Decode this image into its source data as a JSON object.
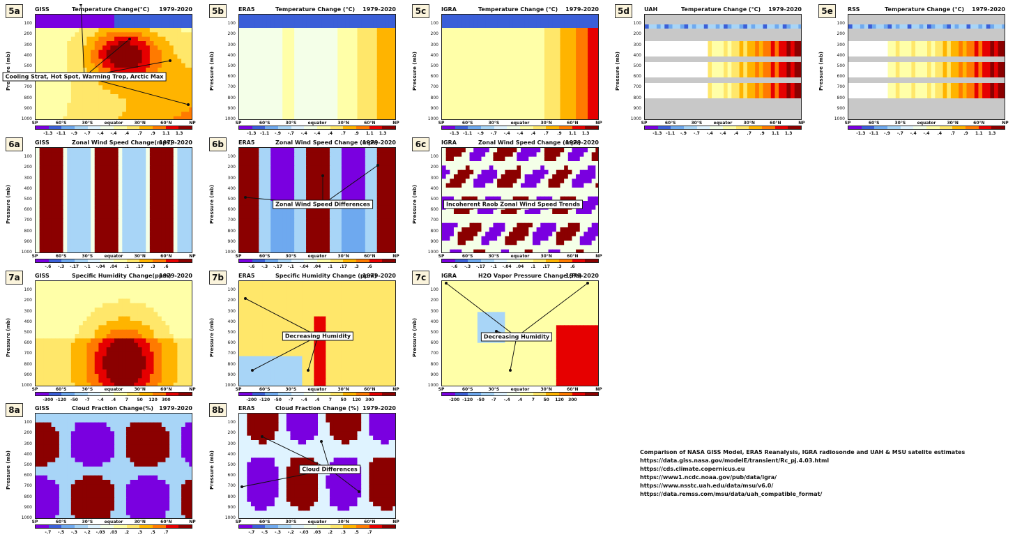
{
  "period": "1979-2020",
  "y_axis_label": "Pressure (mb)",
  "y_ticks": [
    "100",
    "200",
    "300",
    "400",
    "500",
    "600",
    "700",
    "800",
    "900",
    "1000"
  ],
  "x_ticks": [
    "SP",
    "60°S",
    "30°S",
    "equator",
    "30°N",
    "60°N",
    "NP"
  ],
  "colorbar_colors": [
    "#7a00e0",
    "#3b5fd8",
    "#6ea9ef",
    "#a8d5f7",
    "#dff3ff",
    "#f4ffe8",
    "#ffffa8",
    "#ffe76a",
    "#ffb400",
    "#ff7a00",
    "#e60000",
    "#8b0000"
  ],
  "scales": {
    "temp": [
      "-1.3",
      "-1.1",
      "-.9",
      "-.7",
      "-.4",
      "-.4",
      ".4",
      ".7",
      ".9",
      "1.1",
      "1.3"
    ],
    "wind": [
      "-.6",
      "-.3",
      "-.17",
      "-.1",
      "-.04",
      ".04",
      ".1",
      ".17",
      ".3",
      ".6"
    ],
    "hum": [
      "-300",
      "-120",
      "-50",
      "-7",
      "-.4",
      ".4",
      "7",
      "50",
      "120",
      "300"
    ],
    "hum7b": [
      "-200",
      "-120",
      "-50",
      "-7",
      "-.4",
      ".4",
      "7",
      "50",
      "120",
      "300"
    ],
    "hum7c": [
      "-200",
      "-120",
      "-50",
      "-7",
      "-.4",
      ".4",
      "7",
      "50",
      "120",
      "300"
    ],
    "cloud": [
      "-.7",
      "-.5",
      "-.3",
      "-.2",
      "-.03",
      ".03",
      ".2",
      ".3",
      ".5",
      ".7"
    ],
    "cloud8b": [
      "-.7",
      "-.5",
      "-.3",
      "-.2",
      "-.03",
      ".03",
      ".2",
      ".3",
      ".5",
      ".7"
    ]
  },
  "chart_data": [
    {
      "type": "heatmap",
      "id": "5a",
      "source": "GISS",
      "title": "Temperature Change(°C)",
      "annotation": "Cooling Strat, Hot Spot, Warming Trop, Arctic Max"
    },
    {
      "type": "heatmap",
      "id": "5b",
      "source": "ERA5",
      "title": "Temperature Change (°C)"
    },
    {
      "type": "heatmap",
      "id": "5c",
      "source": "IGRA",
      "title": "Temperature Change (°C)"
    },
    {
      "type": "heatmap",
      "id": "5d",
      "source": "UAH",
      "title": "Temperature Change (°C)"
    },
    {
      "type": "heatmap",
      "id": "5e",
      "source": "RSS",
      "title": "Temperature Change (°C)"
    },
    {
      "type": "heatmap",
      "id": "6a",
      "source": "GISS",
      "title": "Zonal Wind Speed Change(mps)"
    },
    {
      "type": "heatmap",
      "id": "6b",
      "source": "ERA5",
      "title": "Zonal Wind Speed Change (mps)",
      "annotation": "Zonal Wind Speed Differences"
    },
    {
      "type": "heatmap",
      "id": "6c",
      "source": "IGRA",
      "title": "Zonal Wind Speed Change (mps)",
      "annotation": "Incoherent Raob Zonal Wind Speed Trends"
    },
    {
      "type": "heatmap",
      "id": "7a",
      "source": "GISS",
      "title": "Specific Humidity Change(ppm)"
    },
    {
      "type": "heatmap",
      "id": "7b",
      "source": "ERA5",
      "title": "Specific Humidity Change (ppm)",
      "annotation": "Decreasing Humidity"
    },
    {
      "type": "heatmap",
      "id": "7c",
      "source": "IGRA",
      "title": "H2O Vapor Pressure Change (Pa)",
      "annotation": "Decreasing Humidity"
    },
    {
      "type": "heatmap",
      "id": "8a",
      "source": "GISS",
      "title": "Cloud Fraction Change(%)"
    },
    {
      "type": "heatmap",
      "id": "8b",
      "source": "ERA5",
      "title": "Cloud Fraction Change (%)",
      "annotation": "Cloud Differences"
    }
  ],
  "references": [
    "Comparison of NASA GISS Model, ERA5 Reanalysis, IGRA radiosonde and UAH & MSU satelite estimates",
    "https://data.giss.nasa.gov/modelE/transient/Rc_pj.4.03.html",
    "https://cds.climate.copernicus.eu",
    "https://www1.ncdc.noaa.gov/pub/data/igra/",
    "https://www.nsstc.uah.edu/data/msu/v6.0/",
    "https://data.remss.com/msu/data/uah_compatible_format/"
  ]
}
